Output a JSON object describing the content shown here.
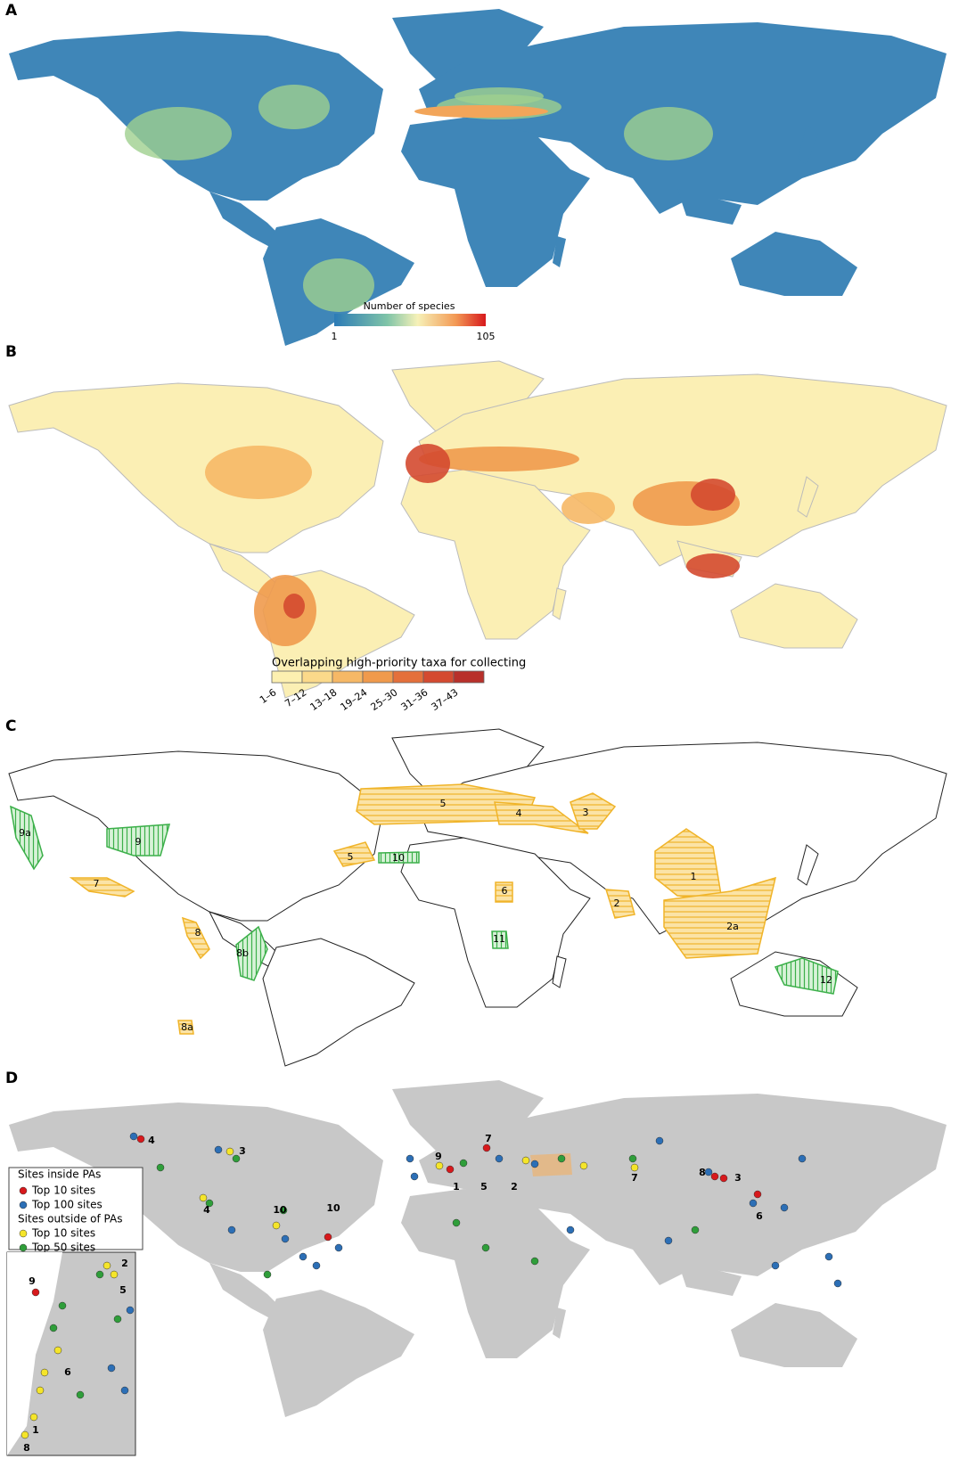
{
  "panels": [
    {
      "letter": "A",
      "legend": {
        "title": "Number of species",
        "min": "1",
        "max": "105"
      }
    },
    {
      "letter": "B",
      "legend": {
        "title": "Overlapping high-priority taxa for collecting",
        "classes": [
          "1–6",
          "7–12",
          "13–18",
          "19–24",
          "25–30",
          "31–36",
          "37–43"
        ]
      }
    },
    {
      "letter": "C",
      "regions": [
        "9a",
        "9",
        "7",
        "8",
        "8b",
        "8a",
        "5",
        "5",
        "4",
        "3",
        "10",
        "6",
        "11",
        "2",
        "1",
        "2a",
        "12"
      ]
    },
    {
      "letter": "D",
      "legend": {
        "inside_title": "Sites inside PAs",
        "inside_top10": "Top 10 sites",
        "inside_top100": "Top 100 sites",
        "outside_title": "Sites outside of PAs",
        "outside_top10": "Top 10 sites",
        "outside_top50": "Top 50 sites"
      },
      "site_labels": [
        "4",
        "3",
        "4",
        "10",
        "10",
        "9",
        "1",
        "7",
        "5",
        "2",
        "7",
        "8",
        "3",
        "6"
      ],
      "inset_labels": [
        "2",
        "5",
        "9",
        "6",
        "1",
        "8"
      ]
    }
  ]
}
